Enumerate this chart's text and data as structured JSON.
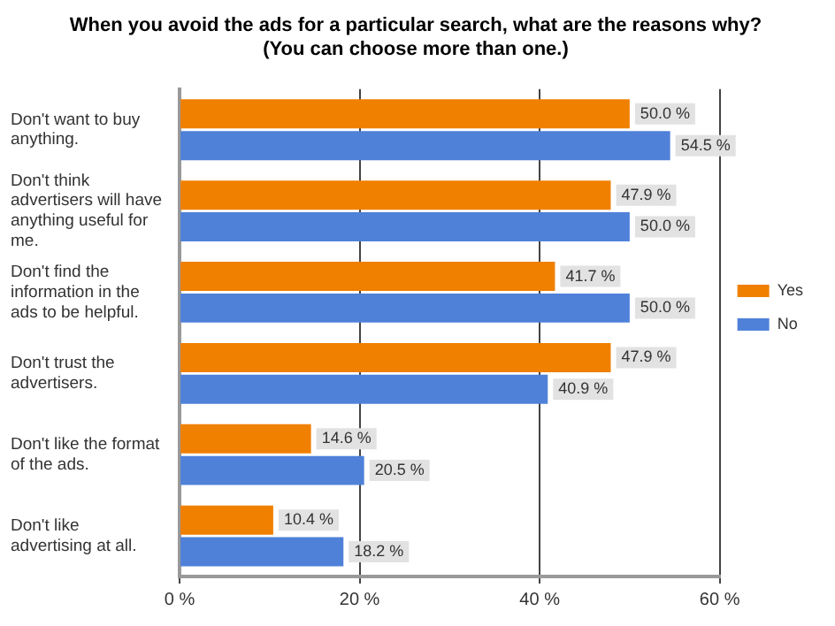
{
  "chart_data": {
    "type": "bar",
    "orientation": "horizontal",
    "title": "When you avoid the ads for a particular search, what are the reasons why?\n(You can choose more than one.)",
    "categories": [
      "Don't want to buy anything.",
      "Don't think advertisers will have anything useful for me.",
      "Don't find the information in the ads to be helpful.",
      "Don't trust the advertisers.",
      "Don't like the format of the ads.",
      "Don't like advertising at all."
    ],
    "series": [
      {
        "name": "Yes",
        "color": "#f08000",
        "values": [
          50.0,
          47.9,
          41.7,
          47.9,
          14.6,
          10.4
        ],
        "value_labels": [
          "50.0 %",
          "47.9 %",
          "41.7 %",
          "47.9 %",
          "14.6 %",
          "10.4 %"
        ]
      },
      {
        "name": "No",
        "color": "#4f81d9",
        "values": [
          54.5,
          50.0,
          50.0,
          40.9,
          20.5,
          18.2
        ],
        "value_labels": [
          "54.5 %",
          "50.0 %",
          "50.0 %",
          "40.9 %",
          "20.5 %",
          "18.2 %"
        ]
      }
    ],
    "xlim": [
      0,
      60
    ],
    "xticks": [
      {
        "value": 0,
        "label": "0 %"
      },
      {
        "value": 20,
        "label": "20 %"
      },
      {
        "value": 40,
        "label": "40 %"
      },
      {
        "value": 60,
        "label": "60 %"
      }
    ],
    "grid": "x",
    "legend": "right"
  }
}
